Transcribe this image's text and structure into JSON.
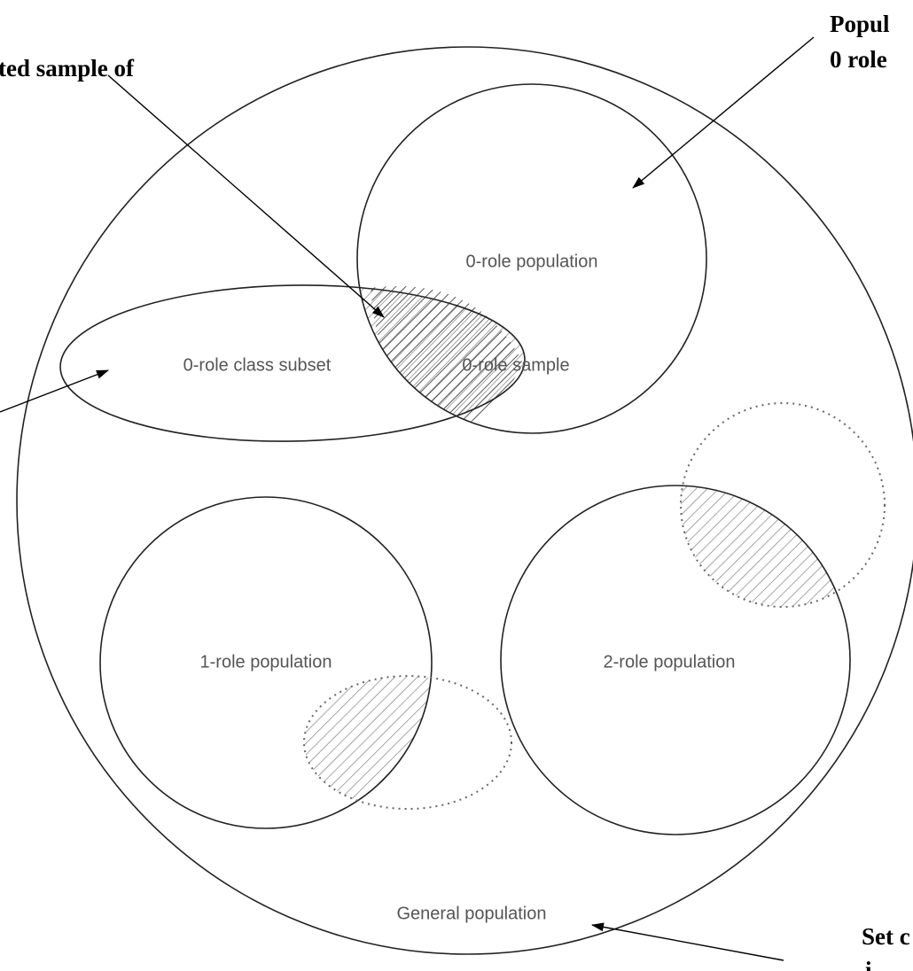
{
  "regions": {
    "general": "General population",
    "zero_population": "0-role population",
    "zero_subset": "0-role class subset",
    "zero_sample": "0-role sample",
    "one_population": "1-role population",
    "two_population": "2-role population"
  },
  "annotations": {
    "sample": "ted sample of",
    "population_line1": "Popul",
    "population_line2": "0 role",
    "set_line1": "Set c",
    "set_line2": "i"
  }
}
